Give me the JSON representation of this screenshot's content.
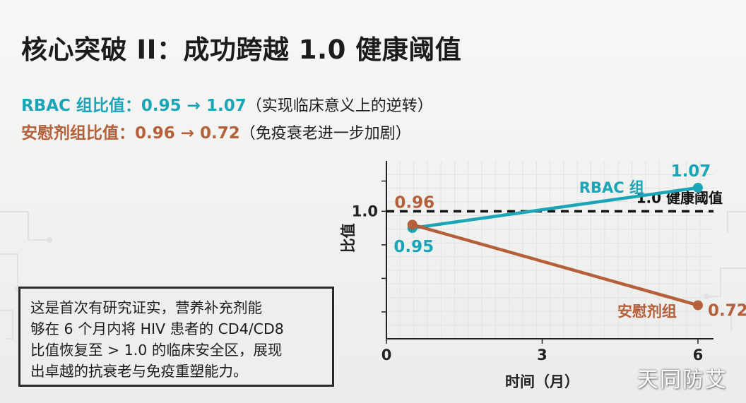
{
  "title": "核心突破 II：成功跨越 1.0 健康阈值",
  "rbac_line": {
    "label": "RBAC 组比值：0.95 → 1.07",
    "note": "（实现临床意义上的逆转）",
    "color": "#1ba5b6"
  },
  "placebo_line": {
    "label": "安慰剂组比值：0.96 → 0.72",
    "note": "（免疫衰老进一步加剧）",
    "color": "#b4603a"
  },
  "callout": {
    "lines": [
      "这是首次有研究证实，营养补充剂能",
      "够在 6 个月内将 HIV 患者的 CD4/CD8",
      "比值恢复至 > 1.0 的临床安全区，展现",
      "出卓越的抗衰老与免疫重塑能力。"
    ]
  },
  "watermark": "天同防艾",
  "chart_data": {
    "type": "line",
    "xlabel": "时间（月）",
    "ylabel": "比值",
    "x_ticks": [
      0,
      3,
      6
    ],
    "y_ticks": [
      "1.0"
    ],
    "xlim": [
      0,
      6.3
    ],
    "ylim": [
      0.62,
      1.15
    ],
    "grid": true,
    "threshold": {
      "value": 1.0,
      "label": "1.0 健康阈值"
    },
    "series": [
      {
        "name": "RBAC 组",
        "color": "#1ba5b6",
        "x": [
          0.5,
          6
        ],
        "y": [
          0.95,
          1.07
        ],
        "labels": [
          "0.95",
          "1.07"
        ]
      },
      {
        "name": "安慰剂组",
        "color": "#b4603a",
        "x": [
          0.5,
          6
        ],
        "y": [
          0.96,
          0.72
        ],
        "labels": [
          "0.96",
          "0.72"
        ]
      }
    ]
  }
}
